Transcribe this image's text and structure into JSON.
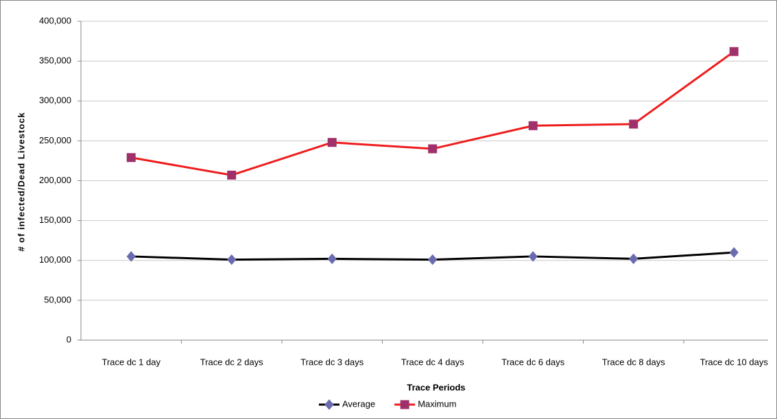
{
  "chart_data": {
    "type": "line",
    "x_label": "Trace Periods",
    "y_label": "# of infected/Dead Livestock",
    "categories": [
      "Trace dc 1 day",
      "Trace dc 2 days",
      "Trace dc 3 days",
      "Trace dc 4 days",
      "Trace dc 6 days",
      "Trace dc 8 days",
      "Trace dc 10 days"
    ],
    "series": [
      {
        "name": "Average",
        "color": "#000000",
        "marker": "diamond",
        "marker_color": "#6b6bb0",
        "values": [
          105000,
          101000,
          102000,
          101000,
          105000,
          102000,
          110000
        ]
      },
      {
        "name": "Maximum",
        "color": "#ee1c1c",
        "marker": "square",
        "marker_color": "#a0306a",
        "values": [
          229000,
          207000,
          248000,
          240000,
          269000,
          271000,
          362000
        ]
      }
    ],
    "ylim": [
      0,
      400000
    ],
    "yticks": [
      0,
      {
        "value": 50000,
        "label": "50,000"
      },
      {
        "value": 100000,
        "label": "100,000"
      },
      {
        "value": 150000,
        "label": "150,000"
      },
      {
        "value": 200000,
        "label": "200,000"
      },
      {
        "value": 250000,
        "label": "250,000"
      },
      {
        "value": 300000,
        "label": "300,000"
      },
      {
        "value": 350000,
        "label": "350,000"
      },
      {
        "value": 400000,
        "label": "400,000"
      }
    ],
    "grid": true,
    "legend": "bottom"
  }
}
